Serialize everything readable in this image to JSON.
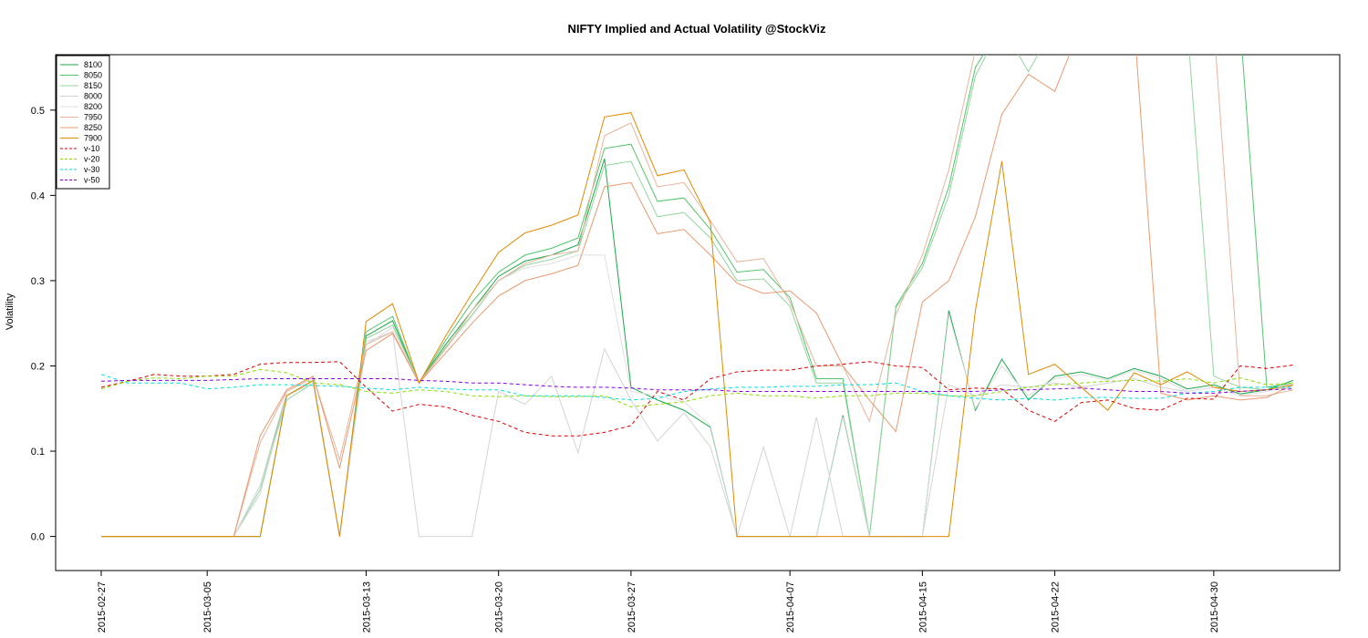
{
  "chart_data": {
    "type": "line",
    "title": "NIFTY Implied and Actual Volatility @StockViz",
    "xlabel": "",
    "ylabel": "Volatility",
    "ylim": [
      -0.04,
      0.565
    ],
    "yticks": [
      "0.0",
      "0.1",
      "0.2",
      "0.3",
      "0.4",
      "0.5"
    ],
    "grid": false,
    "legend_position": "top-left",
    "x": [
      "2015-02-27",
      "2015-03-02",
      "2015-03-03",
      "2015-03-04",
      "2015-03-05",
      "2015-03-06",
      "2015-03-09",
      "2015-03-10",
      "2015-03-11",
      "2015-03-12",
      "2015-03-13",
      "2015-03-16",
      "2015-03-17",
      "2015-03-18",
      "2015-03-19",
      "2015-03-20",
      "2015-03-23",
      "2015-03-24",
      "2015-03-25",
      "2015-03-26",
      "2015-03-27",
      "2015-03-30",
      "2015-03-31",
      "2015-04-01",
      "2015-04-02",
      "2015-04-06",
      "2015-04-07",
      "2015-04-08",
      "2015-04-09",
      "2015-04-10",
      "2015-04-13",
      "2015-04-15",
      "2015-04-16",
      "2015-04-17",
      "2015-04-20",
      "2015-04-21",
      "2015-04-22",
      "2015-04-23",
      "2015-04-24",
      "2015-04-27",
      "2015-04-28",
      "2015-04-29",
      "2015-04-30",
      "2015-05-04",
      "2015-05-05",
      "2015-05-06"
    ],
    "xticks": [
      "2015-02-27",
      "2015-03-05",
      "2015-03-13",
      "2015-03-20",
      "2015-03-27",
      "2015-04-07",
      "2015-04-15",
      "2015-04-22",
      "2015-04-30"
    ],
    "series": [
      {
        "name": "8100",
        "color": "#1aa84a",
        "dash": "solid",
        "values": [
          0,
          0,
          0,
          0,
          0,
          0,
          0,
          0.165,
          0.183,
          0,
          0.235,
          0.253,
          0.18,
          0.225,
          0.265,
          0.305,
          0.323,
          0.33,
          0.342,
          0.443,
          0.175,
          0.16,
          0.148,
          0.128,
          0,
          0,
          0,
          0,
          0.142,
          0,
          0,
          0,
          0.265,
          0.148,
          0.208,
          0.16,
          0.188,
          0.193,
          0.185,
          0.197,
          0.188,
          0.173,
          0.178,
          0.167,
          0.172,
          0.183
        ]
      },
      {
        "name": "8050",
        "color": "#52c46a",
        "dash": "solid",
        "values": [
          0,
          0,
          0,
          0,
          0,
          0,
          0.06,
          0.165,
          0.183,
          0,
          0.24,
          0.258,
          0.18,
          0.23,
          0.275,
          0.31,
          0.33,
          0.338,
          0.35,
          0.455,
          0.46,
          0.393,
          0.397,
          0.36,
          0.31,
          0.313,
          0.28,
          0.185,
          0.185,
          0,
          0.27,
          0.32,
          0.41,
          0.55,
          0.6,
          0.6,
          0.6,
          0.6,
          0.6,
          0.6,
          0.6,
          0.6,
          0.6,
          0.6,
          0.175,
          0.18
        ]
      },
      {
        "name": "8150",
        "color": "#93d59e",
        "dash": "solid",
        "values": [
          0,
          0,
          0,
          0,
          0,
          0,
          0.055,
          0.16,
          0.18,
          0,
          0.232,
          0.248,
          0.18,
          0.222,
          0.26,
          0.3,
          0.318,
          0.325,
          0.335,
          0.435,
          0.44,
          0.375,
          0.38,
          0.35,
          0.3,
          0.302,
          0.27,
          0.18,
          0.18,
          0,
          0.268,
          0.315,
          0.4,
          0.54,
          0.6,
          0.545,
          0.6,
          0.6,
          0.6,
          0.6,
          0.6,
          0.6,
          0.188,
          0.175,
          0.172,
          0.178
        ]
      },
      {
        "name": "8000",
        "color": "#d4d4d4",
        "dash": "solid",
        "values": [
          0,
          0,
          0,
          0,
          0,
          0,
          0.05,
          0.165,
          0.18,
          0,
          0.228,
          0.24,
          0,
          0,
          0,
          0.17,
          0.155,
          0.188,
          0.098,
          0.22,
          0.16,
          0.112,
          0.145,
          0.105,
          0,
          0.105,
          0,
          0.14,
          0,
          0,
          0,
          0,
          0.178,
          0.165,
          0.178,
          0.175,
          0.18,
          0.175,
          0.18,
          0.185,
          0.175,
          0.17,
          0.175,
          0.17,
          0.172,
          0.175
        ]
      },
      {
        "name": "8200",
        "color": "#dfdfdf",
        "dash": "solid",
        "values": [
          0,
          0,
          0,
          0,
          0,
          0,
          0.06,
          0.17,
          0.185,
          0,
          0.225,
          0.245,
          0.18,
          0.22,
          0.258,
          0.3,
          0.315,
          0.32,
          0.33,
          0.33,
          0.17,
          0.165,
          0.158,
          0.13,
          0,
          0,
          0,
          0,
          0.14,
          0,
          0,
          0,
          0.26,
          0.15,
          0.2,
          0.165,
          0.185,
          0.19,
          0.183,
          0.195,
          0.185,
          0.17,
          0.175,
          0.165,
          0.17,
          0.18
        ]
      },
      {
        "name": "7950",
        "color": "#e8b49e",
        "dash": "solid",
        "values": [
          0,
          0,
          0,
          0,
          0,
          0,
          0.11,
          0.17,
          0.187,
          0.09,
          0.225,
          0.24,
          0.18,
          0.22,
          0.265,
          0.3,
          0.32,
          0.33,
          0.335,
          0.47,
          0.485,
          0.41,
          0.415,
          0.37,
          0.322,
          0.326,
          0.275,
          0.2,
          0.2,
          0.135,
          0.26,
          0.33,
          0.43,
          0.57,
          0.6,
          0.6,
          0.6,
          0.6,
          0.6,
          0.6,
          0.6,
          0.6,
          0.6,
          0.165,
          0.165,
          0.172
        ]
      },
      {
        "name": "8250",
        "color": "#e89a70",
        "dash": "solid",
        "values": [
          0,
          0,
          0,
          0,
          0,
          0,
          0.118,
          0.172,
          0.188,
          0.08,
          0.218,
          0.238,
          0.18,
          0.215,
          0.25,
          0.282,
          0.3,
          0.308,
          0.318,
          0.41,
          0.415,
          0.355,
          0.36,
          0.33,
          0.297,
          0.285,
          0.288,
          0.262,
          0.2,
          0.16,
          0.123,
          0.275,
          0.3,
          0.375,
          0.495,
          0.542,
          0.522,
          0.6,
          0.6,
          0.6,
          0.168,
          0.16,
          0.165,
          0.16,
          0.163,
          0.178
        ]
      },
      {
        "name": "7900",
        "color": "#e08a00",
        "dash": "solid",
        "values": [
          0,
          0,
          0,
          0,
          0,
          0,
          0,
          0.165,
          0.183,
          0,
          0.252,
          0.273,
          0.18,
          0.235,
          0.285,
          0.333,
          0.356,
          0.365,
          0.377,
          0.492,
          0.497,
          0.423,
          0.43,
          0.368,
          0,
          0,
          0,
          0,
          0,
          0,
          0,
          0,
          0,
          0.265,
          0.44,
          0.19,
          0.202,
          0.175,
          0.148,
          0.192,
          0.178,
          0.193,
          0.175,
          0.17,
          0.172,
          0.178
        ]
      },
      {
        "name": "v-10",
        "color": "#dd0000",
        "dash": "4,3",
        "values": [
          0.175,
          0.182,
          0.19,
          0.188,
          0.188,
          0.19,
          0.202,
          0.204,
          0.204,
          0.205,
          0.175,
          0.147,
          0.155,
          0.152,
          0.142,
          0.135,
          0.122,
          0.118,
          0.118,
          0.122,
          0.13,
          0.17,
          0.16,
          0.185,
          0.193,
          0.195,
          0.195,
          0.2,
          0.202,
          0.205,
          0.2,
          0.198,
          0.172,
          0.174,
          0.173,
          0.148,
          0.135,
          0.157,
          0.16,
          0.15,
          0.148,
          0.162,
          0.161,
          0.2,
          0.197,
          0.201
        ]
      },
      {
        "name": "v-20",
        "color": "#88dd00",
        "dash": "4,3",
        "values": [
          0.173,
          0.182,
          0.186,
          0.185,
          0.188,
          0.188,
          0.196,
          0.192,
          0.18,
          0.178,
          0.17,
          0.168,
          0.172,
          0.17,
          0.165,
          0.164,
          0.165,
          0.164,
          0.164,
          0.165,
          0.152,
          0.155,
          0.158,
          0.165,
          0.168,
          0.165,
          0.165,
          0.162,
          0.165,
          0.165,
          0.168,
          0.168,
          0.165,
          0.165,
          0.17,
          0.175,
          0.178,
          0.18,
          0.182,
          0.183,
          0.182,
          0.185,
          0.18,
          0.186,
          0.178,
          0.18
        ]
      },
      {
        "name": "v-30",
        "color": "#00dddd",
        "dash": "4,3",
        "values": [
          0.19,
          0.18,
          0.18,
          0.18,
          0.173,
          0.175,
          0.178,
          0.178,
          0.177,
          0.176,
          0.174,
          0.172,
          0.175,
          0.173,
          0.172,
          0.172,
          0.165,
          0.165,
          0.165,
          0.163,
          0.16,
          0.162,
          0.17,
          0.173,
          0.175,
          0.175,
          0.176,
          0.176,
          0.178,
          0.178,
          0.18,
          0.17,
          0.165,
          0.162,
          0.16,
          0.162,
          0.16,
          0.163,
          0.163,
          0.162,
          0.162,
          0.168,
          0.17,
          0.175,
          0.175,
          0.175
        ]
      },
      {
        "name": "v-50",
        "color": "#8800dd",
        "dash": "4,3",
        "values": [
          0.182,
          0.183,
          0.183,
          0.183,
          0.183,
          0.184,
          0.185,
          0.185,
          0.185,
          0.185,
          0.185,
          0.185,
          0.183,
          0.182,
          0.18,
          0.18,
          0.178,
          0.176,
          0.175,
          0.175,
          0.174,
          0.172,
          0.172,
          0.172,
          0.17,
          0.17,
          0.17,
          0.17,
          0.17,
          0.17,
          0.17,
          0.17,
          0.17,
          0.17,
          0.172,
          0.172,
          0.173,
          0.174,
          0.172,
          0.17,
          0.17,
          0.168,
          0.168,
          0.17,
          0.172,
          0.173
        ]
      }
    ]
  }
}
